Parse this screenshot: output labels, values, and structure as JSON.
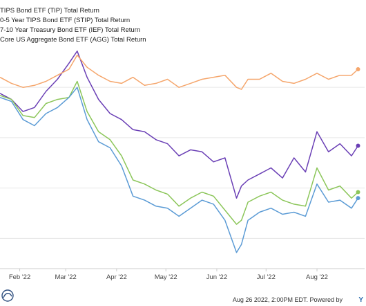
{
  "chart_data": {
    "type": "line",
    "title": "",
    "xlabel": "",
    "ylabel": "",
    "x": [
      "2022-01-20",
      "2022-01-27",
      "2022-02-03",
      "2022-02-10",
      "2022-02-17",
      "2022-02-24",
      "2022-03-03",
      "2022-03-08",
      "2022-03-14",
      "2022-03-21",
      "2022-03-28",
      "2022-04-04",
      "2022-04-11",
      "2022-04-18",
      "2022-04-25",
      "2022-05-02",
      "2022-05-09",
      "2022-05-16",
      "2022-05-23",
      "2022-05-30",
      "2022-06-06",
      "2022-06-13",
      "2022-06-16",
      "2022-06-20",
      "2022-06-27",
      "2022-07-04",
      "2022-07-11",
      "2022-07-18",
      "2022-07-25",
      "2022-08-01",
      "2022-08-08",
      "2022-08-15",
      "2022-08-22",
      "2022-08-26"
    ],
    "x_tick_labels": [
      "Feb '22",
      "Mar '22",
      "Apr '22",
      "May '22",
      "Jun '22",
      "Jul '22",
      "Aug '22"
    ],
    "x_tick_dates": [
      "2022-02-01",
      "2022-03-01",
      "2022-04-01",
      "2022-05-01",
      "2022-06-01",
      "2022-07-01",
      "2022-08-01"
    ],
    "ylim": [
      -9.0,
      2.0
    ],
    "grid": true,
    "legend_position": "top-left",
    "series": [
      {
        "name": "TIPS Bond ETF (TIP) Total Return",
        "color": "#6a3fb5",
        "values": [
          -0.3,
          -0.6,
          -1.2,
          -1.0,
          -0.2,
          0.4,
          1.2,
          1.8,
          0.5,
          -0.6,
          -1.3,
          -1.6,
          -2.1,
          -2.2,
          -2.6,
          -2.8,
          -3.4,
          -3.1,
          -3.2,
          -3.7,
          -3.5,
          -5.5,
          -4.9,
          -4.6,
          -4.3,
          -4.0,
          -4.5,
          -3.5,
          -4.2,
          -2.2,
          -3.2,
          -2.8,
          -3.4,
          -2.9
        ]
      },
      {
        "name": "0-5 Year TIPS Bond ETF (STIP) Total Return",
        "color": "#f5a66c",
        "values": [
          0.5,
          0.2,
          0.0,
          0.1,
          0.3,
          0.6,
          0.9,
          1.6,
          1.0,
          0.6,
          0.3,
          0.2,
          0.5,
          0.1,
          0.2,
          0.4,
          0.0,
          0.2,
          0.4,
          0.5,
          0.6,
          0.0,
          -0.1,
          0.4,
          0.4,
          0.7,
          0.3,
          0.2,
          0.4,
          0.7,
          0.4,
          0.6,
          0.6,
          0.9
        ]
      },
      {
        "name": "7-10 Year Treasury Bond ETF (IEF) Total Return",
        "color": "#8cc65a",
        "values": [
          -0.4,
          -0.6,
          -1.4,
          -1.5,
          -0.8,
          -0.6,
          -0.5,
          0.3,
          -1.2,
          -2.2,
          -2.6,
          -3.4,
          -4.6,
          -4.8,
          -5.1,
          -5.3,
          -5.9,
          -5.5,
          -5.2,
          -5.4,
          -6.1,
          -6.8,
          -6.6,
          -5.7,
          -5.4,
          -5.2,
          -5.6,
          -5.8,
          -5.9,
          -4.0,
          -5.1,
          -4.9,
          -5.5,
          -5.2
        ]
      },
      {
        "name": "Core US Aggregate Bond ETF (AGG) Total Return",
        "color": "#5b9bd5",
        "values": [
          -0.5,
          -0.7,
          -1.6,
          -1.9,
          -1.3,
          -1.0,
          -0.5,
          0.0,
          -1.6,
          -2.7,
          -3.0,
          -3.9,
          -5.4,
          -5.6,
          -5.9,
          -6.0,
          -6.4,
          -6.0,
          -5.6,
          -5.8,
          -6.6,
          -8.2,
          -7.8,
          -6.6,
          -6.2,
          -6.0,
          -6.3,
          -6.2,
          -6.4,
          -4.8,
          -5.7,
          -5.6,
          -6.0,
          -5.5
        ]
      }
    ]
  },
  "footer": {
    "timestamp": "Aug 26 2022, 2:00PM EDT. Powered by",
    "brand": "Y"
  }
}
